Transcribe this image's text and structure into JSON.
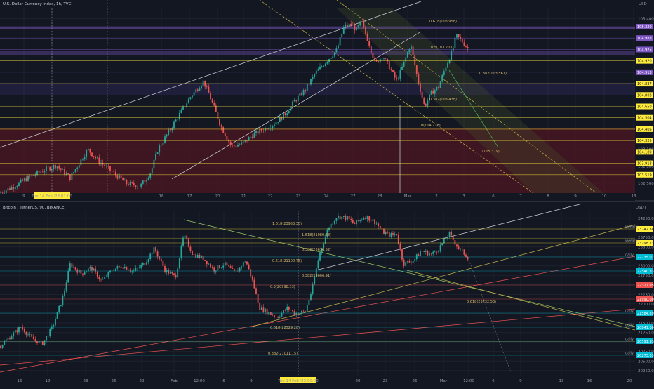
{
  "app": {
    "top_pane_title": "U.S. Dollar Currency Index, 1h, TVC",
    "bottom_pane_title": "Bitcoin / TetherUS, 90, BINANCE",
    "top_currency": "USD",
    "bottom_currency": "USDT"
  },
  "colors": {
    "background": "#131722",
    "grid": "#1e222d",
    "up": "#26a69a",
    "down": "#ef5350",
    "purple_band": "#7e57c2",
    "red_zone": "#4a1622",
    "highlight_tag": "#ffeb3b",
    "cyan_tag": "#00bcd4"
  },
  "chart_data": [
    {
      "type": "candlestick",
      "pane": "top",
      "symbol": "U.S. Dollar Currency Index, 1h, TVC",
      "x_tick_labels": [
        "9",
        "Tue 14 Feb '23  01:00",
        "16",
        "17",
        "20",
        "21",
        "22",
        "23",
        "24",
        "27",
        "28",
        "Mar",
        "2",
        "3",
        "6",
        "7",
        "8",
        "9",
        "10",
        "13"
      ],
      "x_tick_positions": [
        34,
        74,
        230,
        270,
        310,
        347,
        385,
        425,
        465,
        503,
        541,
        581,
        622,
        661,
        703,
        742,
        781,
        820,
        861,
        903
      ],
      "y_tick_labels": [
        "105.400",
        "103.100",
        "102.800",
        "102.500"
      ],
      "y_tick_values": [
        105.4,
        103.1,
        102.8,
        102.5
      ],
      "ylim": [
        102.33,
        105.58
      ],
      "price_path": [
        [
          0,
          102.33
        ],
        [
          20,
          102.45
        ],
        [
          40,
          102.6
        ],
        [
          60,
          102.72
        ],
        [
          80,
          102.82
        ],
        [
          100,
          102.6
        ],
        [
          115,
          102.9
        ],
        [
          125,
          103.1
        ],
        [
          140,
          102.9
        ],
        [
          160,
          102.7
        ],
        [
          180,
          102.5
        ],
        [
          200,
          102.45
        ],
        [
          215,
          102.7
        ],
        [
          225,
          103.1
        ],
        [
          240,
          103.4
        ],
        [
          255,
          103.7
        ],
        [
          270,
          104.0
        ],
        [
          290,
          104.3
        ],
        [
          300,
          104.0
        ],
        [
          315,
          103.5
        ],
        [
          330,
          103.15
        ],
        [
          345,
          103.2
        ],
        [
          360,
          103.35
        ],
        [
          375,
          103.45
        ],
        [
          390,
          103.55
        ],
        [
          405,
          103.7
        ],
        [
          420,
          103.95
        ],
        [
          435,
          104.15
        ],
        [
          450,
          104.45
        ],
        [
          465,
          104.65
        ],
        [
          480,
          104.85
        ],
        [
          490,
          105.25
        ],
        [
          500,
          105.3
        ],
        [
          508,
          105.2
        ],
        [
          515,
          105.35
        ],
        [
          525,
          105.0
        ],
        [
          535,
          104.6
        ],
        [
          545,
          104.75
        ],
        [
          555,
          104.55
        ],
        [
          565,
          104.3
        ],
        [
          575,
          104.6
        ],
        [
          585,
          104.95
        ],
        [
          595,
          104.35
        ],
        [
          605,
          103.85
        ],
        [
          615,
          104.1
        ],
        [
          625,
          104.2
        ],
        [
          635,
          104.55
        ],
        [
          645,
          104.85
        ],
        [
          650,
          105.1
        ],
        [
          655,
          105.05
        ],
        [
          662,
          104.95
        ],
        [
          668,
          104.85
        ]
      ],
      "horizontal_levels": [
        {
          "label": "105.320",
          "color": "#7e57c2"
        },
        {
          "label": "104.983",
          "color": "#7e57c2"
        },
        {
          "label": "104.925",
          "color": "#7e57c2"
        },
        {
          "label": "104.920",
          "color": "#ffeb3b"
        },
        {
          "label": "104.913",
          "color": "#7e57c2"
        },
        {
          "label": "104.837",
          "color": "#ffeb3b"
        },
        {
          "label": "104.803",
          "color": "#ffeb3b"
        },
        {
          "label": "104.650",
          "color": "#ffeb3b"
        },
        {
          "label": "104.504",
          "color": "#ffeb3b"
        },
        {
          "label": "104.405",
          "color": "#ffeb3b"
        },
        {
          "label": "104.325",
          "color": "#ffeb3b"
        },
        {
          "label": "104.189",
          "color": "#ffeb3b"
        },
        {
          "label": "103.913",
          "color": "#ffeb3b"
        },
        {
          "label": "103.519",
          "color": "#ffeb3b"
        }
      ],
      "annotations": [
        "0.618(103.958)",
        "0.5(103.703)",
        "0.382(103.561)",
        "0.382(103.438)",
        "0(104.228)",
        "1(105.379)"
      ],
      "crosshair_date": "Tue 14 Feb '23  01:00"
    },
    {
      "type": "candlestick",
      "pane": "bottom",
      "symbol": "Bitcoin / TetherUS, 90, BINANCE",
      "x_tick_labels": [
        "16",
        "19",
        "23",
        "26",
        "29",
        "Feb",
        "12:00",
        "6",
        "9",
        "Tue 14 Feb '23  00:00",
        "20",
        "23",
        "26",
        "Mar",
        "12:00",
        "6",
        "9",
        "13",
        "16",
        "20"
      ],
      "x_tick_positions": [
        28,
        68,
        122,
        162,
        202,
        248,
        284,
        319,
        358,
        425,
        510,
        549,
        591,
        632,
        668,
        703,
        742,
        800,
        840,
        897
      ],
      "y_tick_labels": [
        "24250.00",
        "24000.00",
        "23750.00",
        "23500.00",
        "23250.00",
        "23000.00",
        "22750.00",
        "22500.00",
        "22250.00",
        "22000.00",
        "21750.00",
        "21500.00",
        "21250.00",
        "21000.00",
        "20750.00",
        "20500.00",
        "20250.00"
      ],
      "y_tick_values": [
        24250,
        24000,
        23750,
        23500,
        23250,
        23000,
        22750,
        22500,
        22250,
        22000,
        21750,
        21500,
        21250,
        21000,
        20750,
        20500,
        20250
      ],
      "ylim": [
        20100,
        24450
      ],
      "price_path": [
        [
          0,
          20900
        ],
        [
          15,
          21150
        ],
        [
          30,
          21400
        ],
        [
          45,
          21100
        ],
        [
          60,
          20950
        ],
        [
          75,
          21400
        ],
        [
          90,
          22200
        ],
        [
          100,
          23050
        ],
        [
          115,
          22800
        ],
        [
          130,
          22950
        ],
        [
          145,
          22600
        ],
        [
          160,
          22900
        ],
        [
          175,
          23000
        ],
        [
          190,
          22850
        ],
        [
          205,
          23050
        ],
        [
          220,
          23450
        ],
        [
          235,
          22900
        ],
        [
          250,
          22700
        ],
        [
          262,
          23800
        ],
        [
          275,
          23300
        ],
        [
          290,
          23200
        ],
        [
          305,
          22900
        ],
        [
          320,
          23050
        ],
        [
          335,
          22800
        ],
        [
          350,
          23150
        ],
        [
          360,
          22600
        ],
        [
          370,
          21900
        ],
        [
          380,
          21800
        ],
        [
          395,
          21650
        ],
        [
          410,
          21900
        ],
        [
          420,
          21750
        ],
        [
          435,
          21800
        ],
        [
          445,
          22400
        ],
        [
          455,
          23300
        ],
        [
          468,
          24000
        ],
        [
          480,
          24300
        ],
        [
          495,
          24250
        ],
        [
          505,
          24100
        ],
        [
          520,
          24300
        ],
        [
          535,
          24150
        ],
        [
          545,
          23900
        ],
        [
          555,
          23800
        ],
        [
          565,
          23850
        ],
        [
          575,
          23050
        ],
        [
          590,
          23150
        ],
        [
          600,
          23400
        ],
        [
          615,
          23300
        ],
        [
          625,
          23450
        ],
        [
          640,
          23850
        ],
        [
          652,
          23500
        ],
        [
          660,
          23350
        ],
        [
          668,
          23200
        ]
      ],
      "horizontal_levels": [
        {
          "label": "23742.30",
          "color": "#ffeb3b",
          "tag": "weekly"
        },
        {
          "label": "23298.13",
          "color": "#ffeb3b",
          "tag": "weekly"
        },
        {
          "label": "22735.01",
          "color": "#00bcd4",
          "tag": "daily"
        },
        {
          "label": "22540.33",
          "color": "#00bcd4"
        },
        {
          "label": "22327.95",
          "color": "#ef5350"
        },
        {
          "label": "21990.00",
          "color": "#ef5350"
        },
        {
          "label": "21584.89",
          "color": "#00bcd4",
          "tag": "daily"
        },
        {
          "label": "20841.00",
          "color": "#00bcd4",
          "tag": "daily"
        },
        {
          "label": "20591.93",
          "color": "#00bcd4",
          "tag": "daily"
        },
        {
          "label": "20273.03",
          "color": "#00bcd4",
          "tag": "daily"
        }
      ],
      "annotations": [
        "1.618(23953.38)",
        "0.382(23636.52)",
        "0.382(23606.91)",
        "0.618(23732.50)",
        "0.618(22529.28)",
        "0.382(21011.15)",
        "1.618(21080.38)",
        "0.618(21100.75)",
        "0.5(20998.33)"
      ],
      "crosshair_date": "Tue 14 Feb '23  00:00"
    }
  ]
}
